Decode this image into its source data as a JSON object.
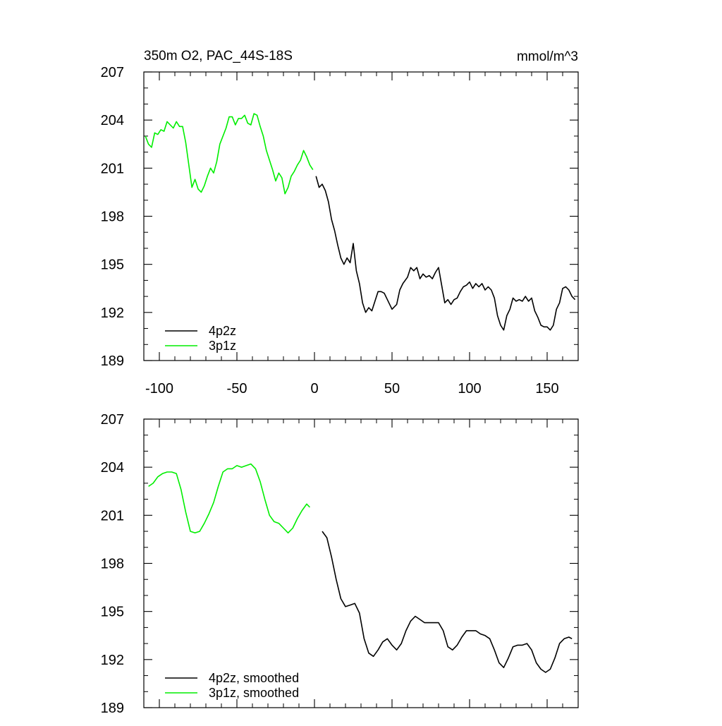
{
  "colors": {
    "model_4p2z": "#000000",
    "model_3p1z": "#00ee00",
    "axis": "#000000",
    "background": "#ffffff"
  },
  "chart_data": [
    {
      "id": "top",
      "type": "line",
      "title": "350m O2, PAC_44S-18S",
      "units": "mmol/m^3",
      "xlim": [
        -110,
        170
      ],
      "ylim": [
        189,
        207
      ],
      "x_ticks": [
        -100,
        -50,
        0,
        50,
        100,
        150
      ],
      "x_tick_labels": [
        "-100",
        "-50",
        "0",
        "50",
        "100",
        "150"
      ],
      "y_ticks": [
        189,
        192,
        195,
        198,
        201,
        204,
        207
      ],
      "y_tick_labels": [
        "189",
        "192",
        "195",
        "198",
        "201",
        "204",
        "207"
      ],
      "legend": {
        "position": "bottom-left",
        "entries": [
          "4p2z",
          "3p1z"
        ]
      },
      "series": [
        {
          "name": "4p2z",
          "color": "#000000",
          "x": [
            1,
            3,
            5,
            7,
            9,
            11,
            13,
            15,
            17,
            19,
            21,
            23,
            25,
            27,
            29,
            31,
            33,
            35,
            37,
            39,
            41,
            43,
            45,
            47,
            50,
            53,
            55,
            57,
            60,
            62,
            64,
            66,
            68,
            70,
            72,
            74,
            76,
            78,
            80,
            82,
            84,
            86,
            88,
            90,
            92,
            94,
            96,
            98,
            100,
            102,
            104,
            106,
            108,
            110,
            112,
            114,
            116,
            118,
            120,
            122,
            124,
            126,
            128,
            130,
            132,
            134,
            136,
            138,
            140,
            142,
            144,
            146,
            148,
            150,
            152,
            154,
            156,
            158,
            160,
            162,
            164,
            166,
            168
          ],
          "values": [
            200.5,
            199.8,
            200.0,
            199.6,
            198.9,
            197.8,
            197.1,
            196.2,
            195.4,
            195.0,
            195.4,
            195.1,
            196.3,
            194.6,
            193.8,
            192.6,
            192.0,
            192.3,
            192.1,
            192.7,
            193.3,
            193.3,
            193.2,
            192.8,
            192.2,
            192.5,
            193.4,
            193.8,
            194.2,
            194.8,
            194.6,
            194.8,
            194.1,
            194.4,
            194.2,
            194.3,
            194.1,
            194.5,
            194.8,
            193.7,
            192.6,
            192.8,
            192.5,
            192.8,
            192.9,
            193.3,
            193.6,
            193.7,
            193.9,
            193.5,
            193.8,
            193.6,
            193.8,
            193.4,
            193.6,
            193.4,
            192.9,
            191.8,
            191.2,
            190.9,
            191.8,
            192.2,
            192.9,
            192.7,
            192.8,
            192.7,
            193.0,
            192.7,
            192.9,
            192.1,
            191.7,
            191.2,
            191.1,
            191.1,
            190.9,
            191.2,
            192.2,
            192.6,
            193.5,
            193.6,
            193.4,
            193.0,
            192.8
          ]
        },
        {
          "name": "3p1z",
          "color": "#00ee00",
          "x": [
            -109,
            -107,
            -105,
            -103,
            -101,
            -99,
            -97,
            -95,
            -93,
            -91,
            -89,
            -87,
            -85,
            -83,
            -81,
            -79,
            -77,
            -75,
            -73,
            -71,
            -69,
            -67,
            -65,
            -63,
            -61,
            -59,
            -57,
            -55,
            -53,
            -51,
            -49,
            -47,
            -45,
            -43,
            -41,
            -39,
            -37,
            -35,
            -33,
            -31,
            -29,
            -27,
            -25,
            -23,
            -21,
            -19,
            -17,
            -15,
            -13,
            -11,
            -9,
            -7,
            -5,
            -3,
            -1
          ],
          "values": [
            203.0,
            202.5,
            202.3,
            203.2,
            203.1,
            203.4,
            203.3,
            203.9,
            203.7,
            203.5,
            203.9,
            203.6,
            203.6,
            202.6,
            201.2,
            199.8,
            200.3,
            199.7,
            199.5,
            199.9,
            200.5,
            201.0,
            200.7,
            201.4,
            202.5,
            203.0,
            203.5,
            204.2,
            204.2,
            203.7,
            204.1,
            204.1,
            204.3,
            203.8,
            203.7,
            204.4,
            204.3,
            203.6,
            203.0,
            202.1,
            201.5,
            200.9,
            200.2,
            200.7,
            200.4,
            199.4,
            199.8,
            200.5,
            200.8,
            201.2,
            201.5,
            202.1,
            201.7,
            201.2,
            200.9
          ]
        }
      ]
    },
    {
      "id": "bottom",
      "type": "line",
      "title": "",
      "units": "",
      "xlim": [
        -110,
        170
      ],
      "ylim": [
        189,
        207
      ],
      "x_ticks": [
        -100,
        -50,
        0,
        50,
        100,
        150
      ],
      "y_ticks": [
        189,
        192,
        195,
        198,
        201,
        204,
        207
      ],
      "y_tick_labels": [
        "189",
        "192",
        "195",
        "198",
        "201",
        "204",
        "207"
      ],
      "legend": {
        "position": "bottom-left",
        "entries": [
          "4p2z, smoothed",
          "3p1z, smoothed"
        ]
      },
      "series": [
        {
          "name": "4p2z, smoothed",
          "color": "#000000",
          "x": [
            5,
            8,
            11,
            14,
            17,
            20,
            23,
            26,
            29,
            32,
            35,
            38,
            41,
            44,
            47,
            50,
            53,
            56,
            59,
            62,
            65,
            68,
            71,
            74,
            77,
            80,
            83,
            86,
            89,
            92,
            95,
            98,
            101,
            104,
            107,
            110,
            113,
            116,
            119,
            122,
            125,
            128,
            131,
            134,
            137,
            140,
            143,
            146,
            149,
            152,
            155,
            158,
            161,
            164,
            166
          ],
          "values": [
            200.0,
            199.6,
            198.4,
            197.0,
            195.8,
            195.3,
            195.4,
            195.5,
            194.9,
            193.3,
            192.4,
            192.2,
            192.6,
            193.1,
            193.3,
            192.9,
            192.6,
            193.0,
            193.8,
            194.4,
            194.7,
            194.5,
            194.3,
            194.3,
            194.3,
            194.3,
            193.8,
            192.8,
            192.6,
            192.9,
            193.4,
            193.8,
            193.8,
            193.8,
            193.6,
            193.5,
            193.3,
            192.6,
            191.8,
            191.5,
            192.1,
            192.8,
            192.9,
            192.9,
            193.0,
            192.6,
            191.8,
            191.4,
            191.2,
            191.4,
            192.1,
            193.0,
            193.3,
            193.4,
            193.3
          ]
        },
        {
          "name": "3p1z, smoothed",
          "color": "#00ee00",
          "x": [
            -107,
            -104,
            -101,
            -98,
            -95,
            -92,
            -89,
            -86,
            -83,
            -80,
            -77,
            -74,
            -71,
            -68,
            -65,
            -62,
            -59,
            -56,
            -53,
            -50,
            -47,
            -44,
            -41,
            -38,
            -35,
            -32,
            -29,
            -26,
            -23,
            -20,
            -17,
            -14,
            -11,
            -8,
            -5,
            -3
          ],
          "values": [
            202.8,
            203.0,
            203.4,
            203.6,
            203.7,
            203.7,
            203.6,
            202.6,
            201.2,
            200.0,
            199.9,
            200.0,
            200.5,
            201.1,
            201.8,
            202.8,
            203.7,
            203.9,
            203.9,
            204.1,
            204.0,
            204.1,
            204.2,
            203.9,
            203.1,
            202.0,
            201.0,
            200.6,
            200.5,
            200.2,
            199.9,
            200.2,
            200.8,
            201.3,
            201.7,
            201.5
          ]
        }
      ]
    }
  ]
}
